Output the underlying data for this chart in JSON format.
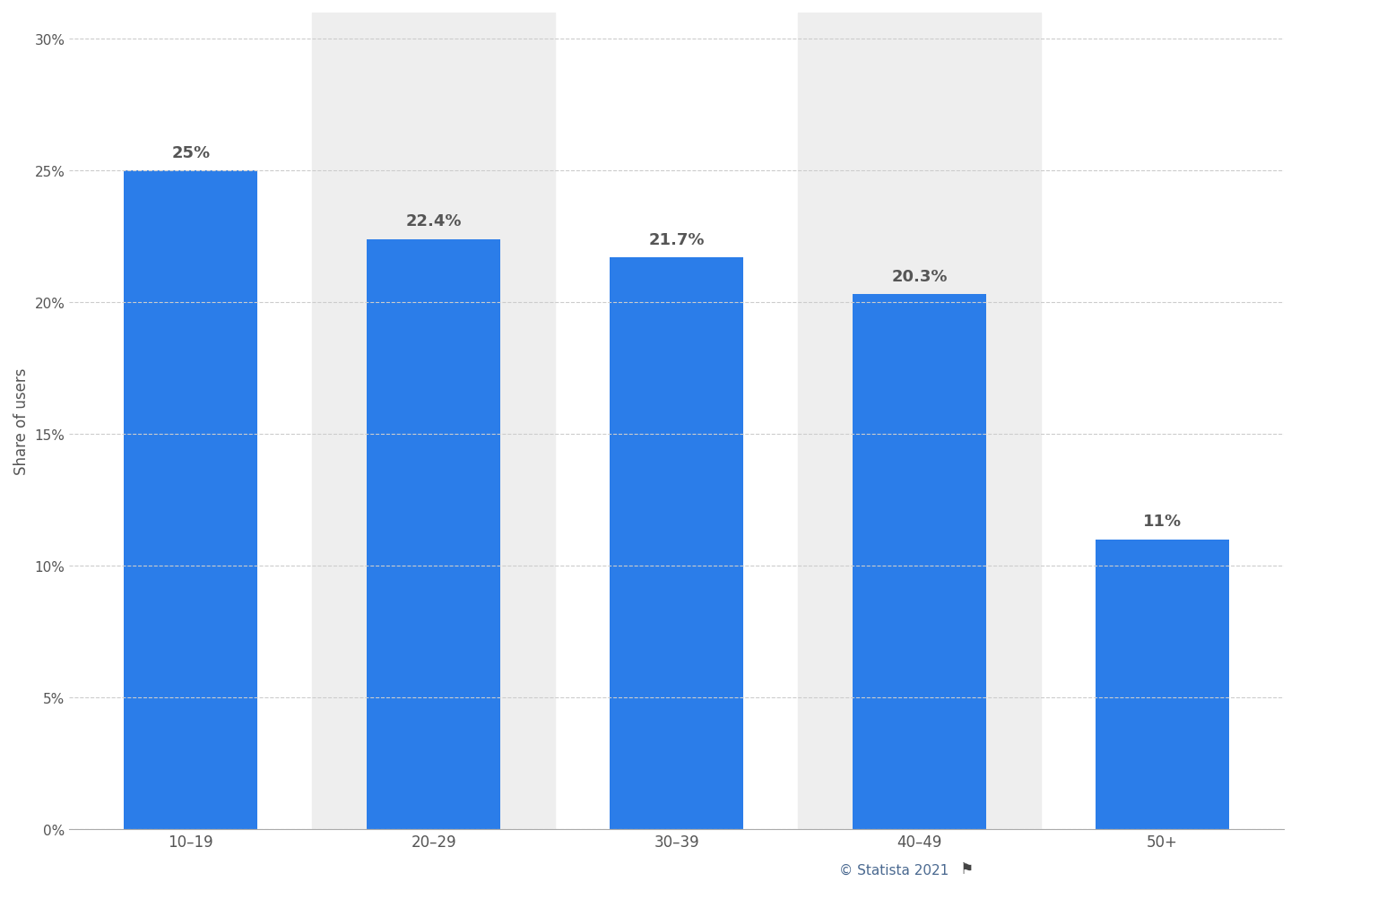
{
  "categories": [
    "10–19",
    "20–29",
    "30–39",
    "40–49",
    "50+"
  ],
  "values": [
    25.0,
    22.4,
    21.7,
    20.3,
    11.0
  ],
  "labels": [
    "25%",
    "22.4%",
    "21.7%",
    "20.3%",
    "11%"
  ],
  "bar_color": "#2b7de9",
  "background_color": "#ffffff",
  "plot_bg_color": "#f7f7f7",
  "ylabel": "Share of users",
  "ylim": [
    0,
    31
  ],
  "yticks": [
    0,
    5,
    10,
    15,
    20,
    25,
    30
  ],
  "ytick_labels": [
    "0%",
    "5%",
    "10%",
    "15%",
    "20%",
    "25%",
    "30%"
  ],
  "grid_color": "#cccccc",
  "bar_label_fontsize": 13,
  "bar_label_color": "#555555",
  "tick_label_color": "#555555",
  "ylabel_color": "#555555",
  "ylabel_fontsize": 12,
  "xtick_fontsize": 12,
  "ytick_fontsize": 11,
  "watermark": "© Statista 2021",
  "watermark_color": "#4a6990",
  "watermark_fontsize": 11,
  "alternating_bg": [
    1,
    3
  ],
  "alternating_bg_color": "#eeeeee"
}
